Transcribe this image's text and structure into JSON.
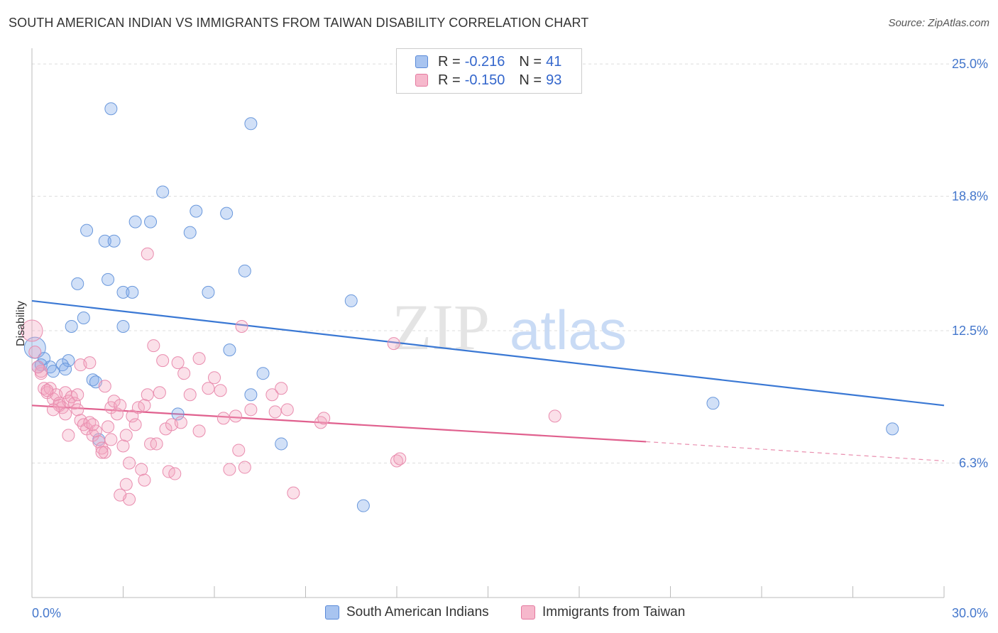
{
  "title": "SOUTH AMERICAN INDIAN VS IMMIGRANTS FROM TAIWAN DISABILITY CORRELATION CHART",
  "source": "Source: ZipAtlas.com",
  "watermark": {
    "zip": "ZIP",
    "atlas": "atlas"
  },
  "legend_stats": [
    {
      "r_label": "R =",
      "r_value": "-0.216",
      "n_label": "N =",
      "n_value": "41",
      "color": "#a8c4f0",
      "border": "#5a8ad8"
    },
    {
      "r_label": "R =",
      "r_value": "-0.150",
      "n_label": "N =",
      "n_value": "93",
      "color": "#f6b8cc",
      "border": "#e47aa0"
    }
  ],
  "chart_data": {
    "type": "scatter",
    "title": "SOUTH AMERICAN INDIAN VS IMMIGRANTS FROM TAIWAN DISABILITY CORRELATION CHART",
    "xlabel": "",
    "ylabel": "Disability",
    "xlim": [
      0,
      30
    ],
    "ylim": [
      0,
      26
    ],
    "x_tick_labels": [
      "0.0%",
      "30.0%"
    ],
    "y_ticks": [
      {
        "value": 25.0,
        "label": "25.0%"
      },
      {
        "value": 18.8,
        "label": "18.8%"
      },
      {
        "value": 12.5,
        "label": "12.5%"
      },
      {
        "value": 6.3,
        "label": "6.3%"
      }
    ],
    "grid": "horizontal dashed",
    "legend_position": "bottom-center",
    "series": [
      {
        "name": "South American Indians",
        "color": "#7aa6e8",
        "trend": {
          "x0": 0,
          "y0": 13.9,
          "x1": 30,
          "y1": 9.0,
          "color": "#3a78d4"
        },
        "points": [
          [
            2.6,
            22.9
          ],
          [
            7.2,
            22.2
          ],
          [
            4.3,
            19.0
          ],
          [
            5.4,
            18.1
          ],
          [
            6.4,
            18.0
          ],
          [
            1.8,
            17.2
          ],
          [
            3.9,
            17.6
          ],
          [
            3.4,
            17.6
          ],
          [
            5.2,
            17.1
          ],
          [
            2.4,
            16.7
          ],
          [
            2.7,
            16.7
          ],
          [
            7.0,
            15.3
          ],
          [
            2.5,
            14.9
          ],
          [
            1.5,
            14.7
          ],
          [
            3.0,
            14.3
          ],
          [
            3.3,
            14.3
          ],
          [
            5.8,
            14.3
          ],
          [
            10.5,
            13.9
          ],
          [
            1.7,
            13.1
          ],
          [
            1.3,
            12.7
          ],
          [
            3.0,
            12.7
          ],
          [
            6.5,
            11.6
          ],
          [
            0.1,
            11.7
          ],
          [
            0.4,
            11.2
          ],
          [
            1.2,
            11.1
          ],
          [
            0.2,
            10.8
          ],
          [
            0.6,
            10.8
          ],
          [
            1.0,
            10.9
          ],
          [
            1.1,
            10.7
          ],
          [
            0.7,
            10.6
          ],
          [
            7.6,
            10.5
          ],
          [
            2.0,
            10.2
          ],
          [
            2.1,
            10.1
          ],
          [
            7.2,
            9.5
          ],
          [
            22.4,
            9.1
          ],
          [
            4.8,
            8.6
          ],
          [
            28.3,
            7.9
          ],
          [
            2.2,
            7.4
          ],
          [
            8.2,
            7.2
          ],
          [
            10.9,
            4.3
          ],
          [
            0.3,
            10.9
          ]
        ]
      },
      {
        "name": "Immigrants from Taiwan",
        "color": "#f3a6c0",
        "trend": {
          "x0": 0,
          "y0": 9.0,
          "x1": 20.2,
          "y1": 7.3,
          "dash_x1": 30,
          "dash_y1": 6.4,
          "color": "#e0608e"
        },
        "points": [
          [
            0.0,
            12.5
          ],
          [
            0.1,
            11.5
          ],
          [
            0.3,
            10.5
          ],
          [
            0.4,
            9.8
          ],
          [
            0.5,
            9.6
          ],
          [
            0.6,
            9.8
          ],
          [
            0.7,
            9.3
          ],
          [
            0.8,
            9.5
          ],
          [
            0.9,
            9.1
          ],
          [
            1.0,
            8.9
          ],
          [
            1.1,
            9.6
          ],
          [
            1.2,
            9.2
          ],
          [
            1.3,
            9.4
          ],
          [
            1.4,
            9.1
          ],
          [
            1.5,
            8.8
          ],
          [
            1.6,
            8.3
          ],
          [
            1.7,
            8.1
          ],
          [
            1.8,
            7.9
          ],
          [
            1.9,
            8.2
          ],
          [
            2.0,
            7.6
          ],
          [
            2.1,
            7.8
          ],
          [
            2.2,
            7.3
          ],
          [
            2.3,
            7.0
          ],
          [
            2.4,
            6.8
          ],
          [
            2.5,
            8.0
          ],
          [
            2.6,
            8.9
          ],
          [
            2.7,
            9.2
          ],
          [
            2.8,
            8.6
          ],
          [
            2.9,
            9.0
          ],
          [
            3.0,
            7.1
          ],
          [
            3.1,
            7.6
          ],
          [
            3.2,
            6.3
          ],
          [
            3.3,
            8.5
          ],
          [
            3.4,
            8.1
          ],
          [
            3.5,
            8.9
          ],
          [
            3.6,
            6.0
          ],
          [
            3.7,
            5.5
          ],
          [
            3.8,
            9.5
          ],
          [
            3.9,
            7.2
          ],
          [
            4.0,
            11.8
          ],
          [
            4.2,
            9.6
          ],
          [
            4.3,
            11.1
          ],
          [
            4.4,
            7.9
          ],
          [
            4.5,
            5.9
          ],
          [
            4.6,
            8.1
          ],
          [
            4.7,
            5.8
          ],
          [
            4.8,
            11.0
          ],
          [
            5.0,
            10.5
          ],
          [
            5.2,
            9.5
          ],
          [
            5.5,
            7.8
          ],
          [
            5.8,
            9.8
          ],
          [
            6.0,
            10.3
          ],
          [
            6.2,
            9.7
          ],
          [
            6.3,
            8.4
          ],
          [
            6.5,
            6.0
          ],
          [
            6.7,
            8.5
          ],
          [
            6.8,
            6.9
          ],
          [
            6.9,
            12.7
          ],
          [
            7.0,
            6.1
          ],
          [
            7.2,
            8.8
          ],
          [
            7.9,
            9.5
          ],
          [
            8.0,
            8.7
          ],
          [
            8.2,
            9.8
          ],
          [
            8.4,
            8.8
          ],
          [
            8.6,
            4.9
          ],
          [
            9.5,
            8.2
          ],
          [
            9.6,
            8.4
          ],
          [
            11.9,
            11.9
          ],
          [
            12.0,
            6.4
          ],
          [
            12.1,
            6.5
          ],
          [
            17.2,
            8.5
          ],
          [
            0.3,
            10.6
          ],
          [
            0.5,
            9.7
          ],
          [
            0.9,
            9.0
          ],
          [
            1.1,
            8.6
          ],
          [
            1.5,
            9.5
          ],
          [
            2.0,
            8.1
          ],
          [
            2.3,
            6.8
          ],
          [
            2.6,
            7.4
          ],
          [
            3.1,
            5.3
          ],
          [
            3.2,
            4.6
          ],
          [
            3.7,
            9.0
          ],
          [
            4.1,
            7.2
          ],
          [
            1.2,
            7.6
          ],
          [
            2.4,
            9.9
          ],
          [
            0.7,
            8.8
          ],
          [
            2.9,
            4.8
          ],
          [
            1.6,
            10.9
          ],
          [
            1.9,
            11.0
          ],
          [
            3.8,
            16.1
          ],
          [
            4.9,
            8.2
          ],
          [
            0.2,
            10.8
          ],
          [
            5.5,
            11.2
          ]
        ]
      }
    ]
  },
  "bottom_legend": [
    {
      "label": "South American Indians",
      "color": "#a8c4f0",
      "border": "#5a8ad8"
    },
    {
      "label": "Immigrants from Taiwan",
      "color": "#f6b8cc",
      "border": "#e47aa0"
    }
  ]
}
